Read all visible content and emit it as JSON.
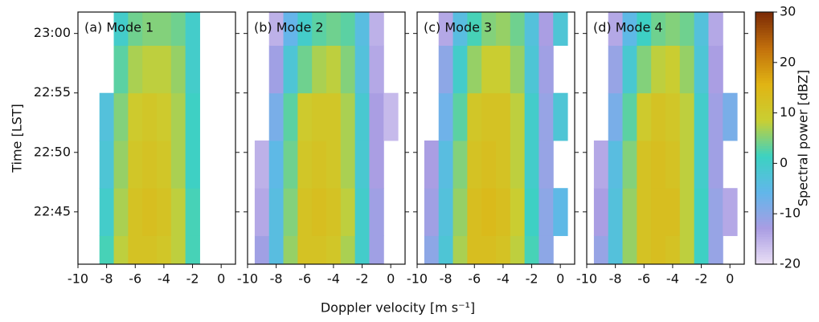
{
  "chart_data": {
    "type": "heatmap",
    "xlabel": "Doppler velocity [m s⁻¹]",
    "ylabel": "Time [LST]",
    "x": [
      -9,
      -8,
      -7,
      -6,
      -5,
      -4,
      -3,
      -2,
      -1,
      0
    ],
    "y": [
      41,
      45,
      49,
      53,
      57,
      61
    ],
    "xlim": [
      -10,
      1
    ],
    "xticks": [
      -10,
      -8,
      -6,
      -4,
      -2,
      0
    ],
    "ylim": [
      40.6,
      61.8
    ],
    "yticks": [
      {
        "value": 45,
        "label": "22:45"
      },
      {
        "value": 50,
        "label": "22:50"
      },
      {
        "value": 55,
        "label": "22:55"
      },
      {
        "value": 60,
        "label": "23:00"
      }
    ],
    "panels": [
      {
        "title": "(a) Mode 1",
        "z": [
          [
            null,
            2,
            8,
            12,
            12,
            11,
            8,
            2,
            null,
            null
          ],
          [
            null,
            0,
            7,
            12,
            13,
            12,
            8,
            2,
            null,
            null
          ],
          [
            null,
            -2,
            6,
            11,
            12,
            11,
            7,
            1,
            null,
            null
          ],
          [
            null,
            -3,
            5,
            10,
            11,
            10,
            7,
            1,
            null,
            null
          ],
          [
            null,
            null,
            3,
            7,
            8,
            8,
            6,
            0,
            null,
            null
          ],
          [
            null,
            null,
            0,
            4,
            5,
            5,
            4,
            0,
            null,
            null
          ]
        ]
      },
      {
        "title": "(b) Mode 2",
        "z": [
          [
            -12,
            -4,
            6,
            12,
            12,
            11,
            7,
            0,
            -12,
            null
          ],
          [
            -14,
            -4,
            5,
            12,
            13,
            12,
            8,
            0,
            -12,
            null
          ],
          [
            -15,
            -5,
            4,
            11,
            12,
            11,
            7,
            -1,
            -13,
            null
          ],
          [
            null,
            -8,
            3,
            10,
            11,
            11,
            7,
            -1,
            -13,
            -16
          ],
          [
            null,
            -12,
            -2,
            4,
            7,
            8,
            5,
            -3,
            -14,
            null
          ],
          [
            null,
            -15,
            -6,
            0,
            3,
            4,
            3,
            -4,
            -15,
            null
          ]
        ]
      },
      {
        "title": "(c) Mode 3",
        "z": [
          [
            -10,
            -2,
            7,
            13,
            13,
            12,
            8,
            2,
            -10,
            null
          ],
          [
            -12,
            -3,
            6,
            13,
            14,
            13,
            9,
            1,
            -10,
            -5
          ],
          [
            -13,
            -4,
            5,
            12,
            13,
            12,
            8,
            0,
            -11,
            null
          ],
          [
            null,
            -7,
            3,
            11,
            12,
            12,
            8,
            0,
            -11,
            -2
          ],
          [
            null,
            -10,
            0,
            6,
            9,
            9,
            6,
            -2,
            -12,
            null
          ],
          [
            null,
            -14,
            -4,
            2,
            5,
            6,
            4,
            -3,
            -13,
            -2
          ]
        ]
      },
      {
        "title": "(d) Mode 4",
        "z": [
          [
            -11,
            -3,
            6,
            12,
            13,
            12,
            8,
            1,
            -11,
            null
          ],
          [
            -13,
            -3,
            6,
            12,
            13,
            13,
            8,
            1,
            -11,
            -14
          ],
          [
            -14,
            -4,
            5,
            12,
            13,
            12,
            8,
            0,
            -12,
            null
          ],
          [
            null,
            -8,
            3,
            10,
            12,
            11,
            8,
            0,
            -12,
            -8
          ],
          [
            null,
            -11,
            -1,
            5,
            8,
            9,
            6,
            -2,
            -13,
            null
          ],
          [
            null,
            -14,
            -5,
            1,
            4,
            5,
            4,
            -3,
            -14,
            null
          ]
        ]
      }
    ],
    "colorbar": {
      "label": "Spectral power [dBZ]",
      "clim": [
        -20,
        30
      ],
      "ticks": [
        -20,
        -10,
        0,
        10,
        20,
        30
      ],
      "colormap": [
        "#ebe0f5",
        "#a99de3",
        "#62b6ea",
        "#3cd2c2",
        "#c9cf33",
        "#e0b414",
        "#c2700c",
        "#7a2a06"
      ]
    }
  }
}
